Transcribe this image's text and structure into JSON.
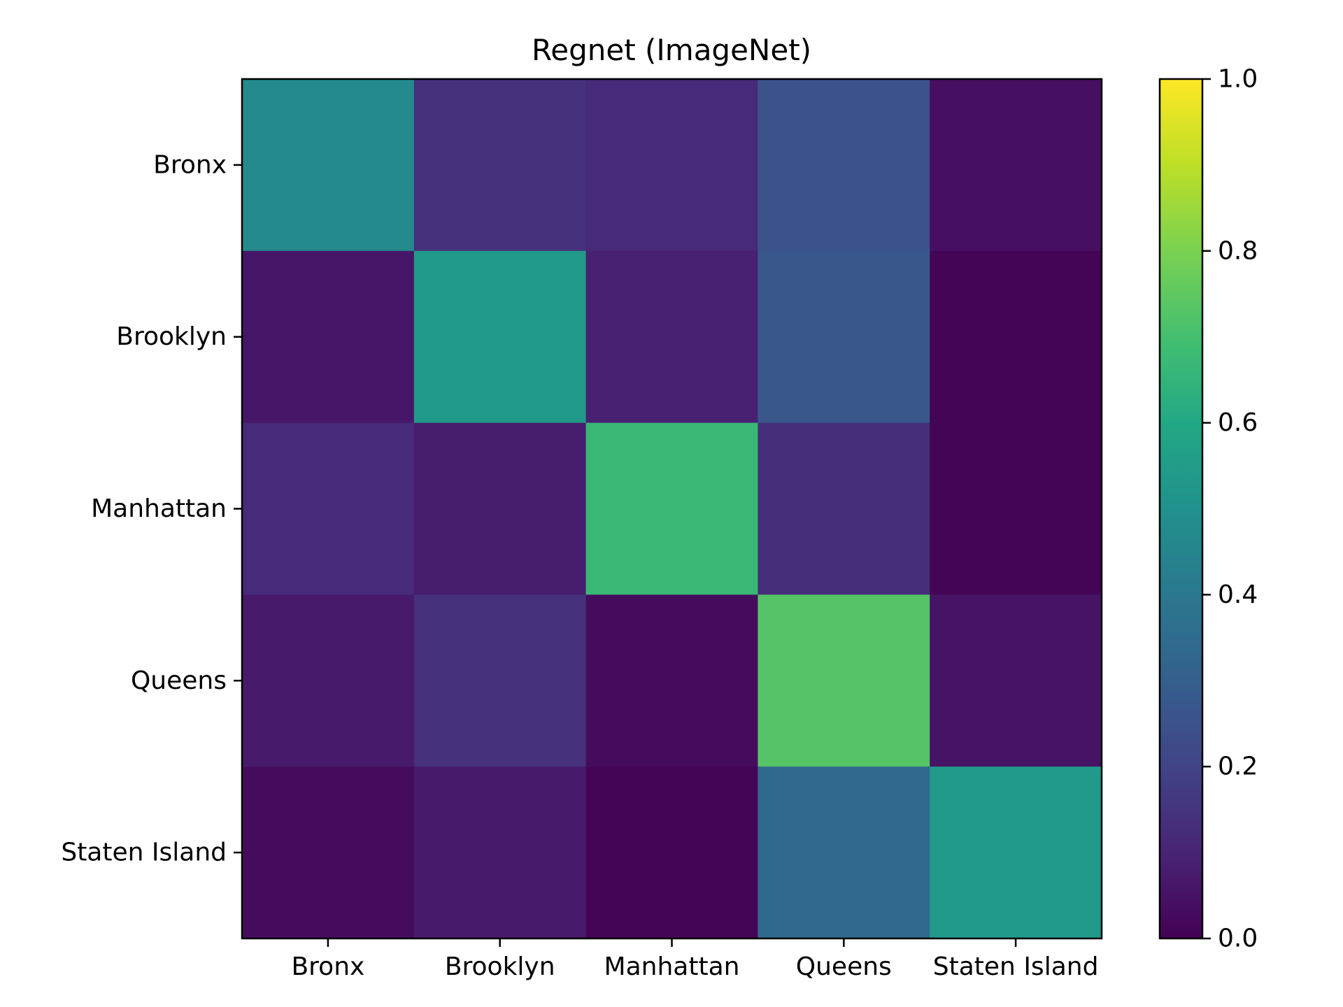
{
  "chart_data": {
    "type": "heatmap",
    "title": "Regnet (ImageNet)",
    "xlabel": "",
    "ylabel": "",
    "x_categories": [
      "Bronx",
      "Brooklyn",
      "Manhattan",
      "Queens",
      "Staten Island"
    ],
    "y_categories": [
      "Bronx",
      "Brooklyn",
      "Manhattan",
      "Queens",
      "Staten Island"
    ],
    "values": [
      [
        0.47,
        0.14,
        0.12,
        0.25,
        0.04
      ],
      [
        0.06,
        0.54,
        0.09,
        0.27,
        0.01
      ],
      [
        0.12,
        0.08,
        0.67,
        0.13,
        0.01
      ],
      [
        0.07,
        0.14,
        0.03,
        0.73,
        0.05
      ],
      [
        0.03,
        0.07,
        0.01,
        0.34,
        0.54
      ]
    ],
    "colormap": "viridis",
    "colorbar": {
      "range": [
        0.0,
        1.0
      ],
      "ticks": [
        "0.0",
        "0.2",
        "0.4",
        "0.6",
        "0.8",
        "1.0"
      ]
    },
    "grid": false
  }
}
